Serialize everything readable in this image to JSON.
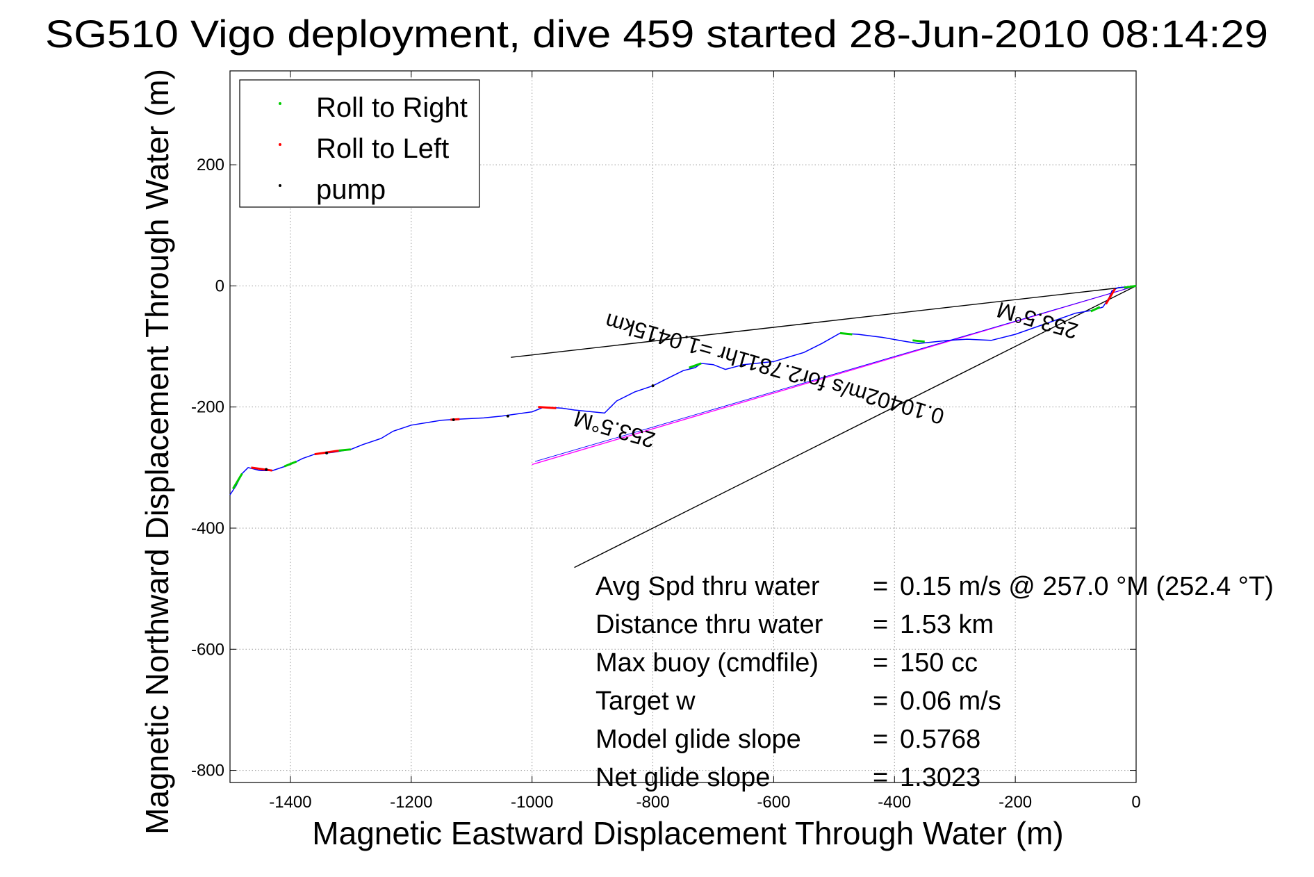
{
  "chart_data": {
    "type": "line",
    "title": "SG510 Vigo deployment, dive 459 started 28-Jun-2010 08:14:29",
    "xlabel": "Magnetic Eastward Displacement Through Water (m)",
    "ylabel": "Magnetic Northward Displacement Through Water (m)",
    "xlim": [
      -1500,
      0
    ],
    "ylim": [
      -820,
      355
    ],
    "xticks": [
      "-1400",
      "-1200",
      "-1000",
      "-800",
      "-600",
      "-400",
      "-200",
      "0"
    ],
    "xtick_values": [
      -1400,
      -1200,
      -1000,
      -800,
      -600,
      -400,
      -200,
      0
    ],
    "yticks": [
      "200",
      "0",
      "-200",
      "-400",
      "-600",
      "-800"
    ],
    "ytick_values": [
      200,
      0,
      -200,
      -400,
      -600,
      -800
    ],
    "grid": true,
    "legend": {
      "location": "top-left",
      "entries": [
        {
          "label": "Roll to Right",
          "color": "#00cc00"
        },
        {
          "label": "Roll to Left",
          "color": "#ff0000"
        },
        {
          "label": "pump",
          "color": "#000000"
        }
      ]
    },
    "track_color": "#0000ff",
    "track": [
      [
        0,
        0
      ],
      [
        -30,
        -3
      ],
      [
        -40,
        -8
      ],
      [
        -45,
        -20
      ],
      [
        -55,
        -35
      ],
      [
        -70,
        -40
      ],
      [
        -100,
        -45
      ],
      [
        -200,
        -80
      ],
      [
        -240,
        -90
      ],
      [
        -280,
        -88
      ],
      [
        -310,
        -90
      ],
      [
        -360,
        -95
      ],
      [
        -380,
        -92
      ],
      [
        -420,
        -85
      ],
      [
        -460,
        -80
      ],
      [
        -490,
        -78
      ],
      [
        -520,
        -95
      ],
      [
        -550,
        -110
      ],
      [
        -600,
        -125
      ],
      [
        -650,
        -130
      ],
      [
        -680,
        -138
      ],
      [
        -700,
        -130
      ],
      [
        -720,
        -128
      ],
      [
        -730,
        -135
      ],
      [
        -750,
        -140
      ],
      [
        -770,
        -150
      ],
      [
        -800,
        -165
      ],
      [
        -830,
        -175
      ],
      [
        -860,
        -190
      ],
      [
        -880,
        -210
      ],
      [
        -900,
        -208
      ],
      [
        -930,
        -205
      ],
      [
        -950,
        -202
      ],
      [
        -980,
        -200
      ],
      [
        -1000,
        -208
      ],
      [
        -1050,
        -215
      ],
      [
        -1080,
        -218
      ],
      [
        -1120,
        -220
      ],
      [
        -1150,
        -222
      ],
      [
        -1200,
        -230
      ],
      [
        -1230,
        -240
      ],
      [
        -1250,
        -252
      ],
      [
        -1280,
        -262
      ],
      [
        -1300,
        -270
      ],
      [
        -1330,
        -275
      ],
      [
        -1360,
        -278
      ],
      [
        -1380,
        -285
      ],
      [
        -1400,
        -295
      ],
      [
        -1430,
        -305
      ],
      [
        -1450,
        -305
      ],
      [
        -1470,
        -300
      ],
      [
        -1480,
        -310
      ],
      [
        -1490,
        -330
      ],
      [
        -1500,
        -345
      ]
    ],
    "roll_right_segments": [
      [
        [
          0,
          0
        ],
        [
          -20,
          -3
        ]
      ],
      [
        [
          -60,
          -35
        ],
        [
          -75,
          -42
        ]
      ],
      [
        [
          -350,
          -92
        ],
        [
          -370,
          -90
        ]
      ],
      [
        [
          -490,
          -78
        ],
        [
          -470,
          -80
        ]
      ],
      [
        [
          -720,
          -128
        ],
        [
          -740,
          -135
        ]
      ],
      [
        [
          -1300,
          -270
        ],
        [
          -1320,
          -272
        ]
      ],
      [
        [
          -1390,
          -290
        ],
        [
          -1410,
          -298
        ]
      ],
      [
        [
          -1480,
          -310
        ],
        [
          -1495,
          -335
        ]
      ]
    ],
    "roll_left_segments": [
      [
        [
          -35,
          -5
        ],
        [
          -50,
          -30
        ]
      ],
      [
        [
          -960,
          -202
        ],
        [
          -990,
          -200
        ]
      ],
      [
        [
          -1120,
          -220
        ],
        [
          -1135,
          -221
        ]
      ],
      [
        [
          -1320,
          -272
        ],
        [
          -1360,
          -278
        ]
      ],
      [
        [
          -1430,
          -305
        ],
        [
          -1465,
          -300
        ]
      ]
    ],
    "pump_points": [
      [
        -800,
        -165
      ],
      [
        -1040,
        -215
      ],
      [
        -1130,
        -221
      ],
      [
        -1340,
        -276
      ],
      [
        -1440,
        -303
      ]
    ],
    "heading_line": {
      "color": "#ff00ff",
      "from": [
        0,
        0
      ],
      "to": [
        -1000,
        -295
      ]
    },
    "current_line": {
      "color": "#0000ff",
      "from": [
        0,
        0
      ],
      "to": [
        -995,
        -290
      ]
    },
    "cone_lines": [
      {
        "color": "#000000",
        "from": [
          0,
          0
        ],
        "to": [
          -1035,
          -118
        ]
      },
      {
        "color": "#000000",
        "from": [
          0,
          0
        ],
        "to": [
          -930,
          -465
        ]
      }
    ],
    "annotations": [
      {
        "text": "0.10402m/s for2.7811hr =1.0415km",
        "at": [
          -595,
          -125
        ],
        "rotate": 196
      },
      {
        "text": "253.5°M",
        "at": [
          -160,
          -45
        ],
        "rotate": 196
      },
      {
        "text": "253.5°M",
        "at": [
          -860,
          -225
        ],
        "rotate": 196
      }
    ],
    "stats": [
      {
        "label": "Avg Spd thru water",
        "eq": "=",
        "value": "0.15 m/s @ 257.0 °M (252.4 °T)"
      },
      {
        "label": "Distance thru water",
        "eq": "=",
        "value": "1.53 km"
      },
      {
        "label": "Max buoy (cmdfile)",
        "eq": "=",
        "value": "150 cc"
      },
      {
        "label": "Target w",
        "eq": "=",
        "value": "0.06 m/s"
      },
      {
        "label": "Model glide slope",
        "eq": "=",
        "value": "0.5768"
      },
      {
        "label": "Net glide slope",
        "eq": "=",
        "value": "1.3023"
      }
    ]
  }
}
